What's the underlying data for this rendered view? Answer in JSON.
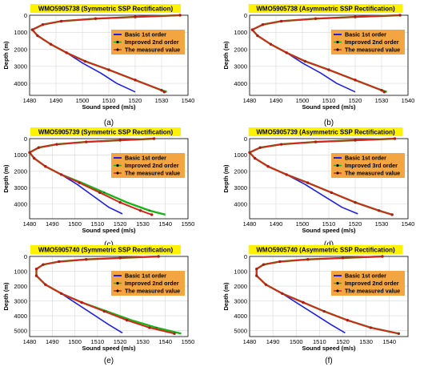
{
  "panels": [
    {
      "label": "(a)",
      "title": "WMO5905738 (Symmetric SSP Rectification)",
      "xlabel": "Sound speed (m/s)",
      "ylabel": "Depth (m)",
      "xticks": [
        1480,
        1490,
        1500,
        1510,
        1520,
        1530,
        1540
      ],
      "yticks": [
        0,
        1000,
        2000,
        3000,
        4000
      ],
      "xlim": [
        1480,
        1540
      ],
      "ylim": [
        0,
        4700
      ],
      "legend": [
        "Basic 1st order",
        "Improved 2nd order",
        "The measured value"
      ],
      "legend_loc": "upper-right"
    },
    {
      "label": "(b)",
      "title": "WMO5905738 (Asymmetric SSP Rectification)",
      "xlabel": "Sound speed (m/s)",
      "ylabel": "Depth (m)",
      "xticks": [
        1480,
        1490,
        1500,
        1510,
        1520,
        1530,
        1540
      ],
      "yticks": [
        0,
        1000,
        2000,
        3000,
        4000
      ],
      "xlim": [
        1480,
        1540
      ],
      "ylim": [
        0,
        4700
      ],
      "legend": [
        "Basic 1st order",
        "Improved 2nd order",
        "The measured value"
      ],
      "legend_loc": "upper-right"
    },
    {
      "label": "(c)",
      "title": "WMO5905739 (Symmetric SSP Rectification)",
      "xlabel": "Sound speed (m/s)",
      "ylabel": "Depth (m)",
      "xticks": [
        1480,
        1490,
        1500,
        1510,
        1520,
        1530,
        1540,
        1550
      ],
      "yticks": [
        0,
        1000,
        2000,
        3000,
        4000
      ],
      "xlim": [
        1480,
        1550
      ],
      "ylim": [
        0,
        4900
      ],
      "legend": [
        "Basic 1st order",
        "Improved 2nd order",
        "The measured value"
      ],
      "legend_loc": "upper-right"
    },
    {
      "label": "(d)",
      "title": "WMO5905739 (Asymmetric SSP Rectification)",
      "xlabel": "Sound speed (m/s)",
      "ylabel": "Depth (m)",
      "xticks": [
        1480,
        1490,
        1500,
        1510,
        1520,
        1530,
        1540
      ],
      "yticks": [
        0,
        1000,
        2000,
        3000,
        4000
      ],
      "xlim": [
        1480,
        1540
      ],
      "ylim": [
        0,
        4900
      ],
      "legend": [
        "Basic 1st order",
        "Improved 3rd order",
        "The measured value"
      ],
      "legend_loc": "upper-right"
    },
    {
      "label": "(e)",
      "title": "WMO5905740 (Symmetric SSP Rectification)",
      "xlabel": "Sound speed (m/s)",
      "ylabel": "Depth (m)",
      "xticks": [
        1480,
        1490,
        1500,
        1510,
        1520,
        1530,
        1540,
        1550
      ],
      "yticks": [
        0,
        1000,
        2000,
        3000,
        4000,
        5000
      ],
      "xlim": [
        1480,
        1550
      ],
      "ylim": [
        0,
        5400
      ],
      "legend": [
        "Basic 1st order",
        "Improved 2nd order",
        "The measured value"
      ],
      "legend_loc": "upper-right"
    },
    {
      "label": "(f)",
      "title": "WMO5905740 (Asymmetric SSP Rectification)",
      "xlabel": "Sound speed (m/s)",
      "ylabel": "Depth (m)",
      "xticks": [
        1480,
        1490,
        1500,
        1510,
        1520,
        1530,
        1540
      ],
      "yticks": [
        0,
        1000,
        2000,
        3000,
        4000,
        5000
      ],
      "xlim": [
        1480,
        1548
      ],
      "ylim": [
        0,
        5400
      ],
      "legend": [
        "Basic 1st order",
        "Improved 2nd order",
        "The measured value"
      ],
      "legend_loc": "upper-right"
    }
  ],
  "colors": {
    "basic": "#1f1fe6",
    "improved": "#18b418",
    "measured": "#d7261b",
    "legend_bg": "#f2a541",
    "title_bg": "#fff200"
  },
  "chart_data": [
    {
      "type": "line",
      "series": [
        {
          "name": "Basic 1st order",
          "x": [
            1537,
            1520,
            1505,
            1492,
            1485,
            1481,
            1483,
            1488,
            1494,
            1500,
            1507,
            1513,
            1520
          ],
          "y": [
            0,
            100,
            200,
            350,
            550,
            850,
            1200,
            1700,
            2200,
            2800,
            3400,
            4000,
            4500
          ]
        },
        {
          "name": "Improved 2nd order",
          "x": [
            1537,
            1520,
            1505,
            1492,
            1485,
            1481,
            1483,
            1488,
            1494,
            1501,
            1510,
            1520,
            1530,
            1532
          ],
          "y": [
            0,
            100,
            200,
            350,
            550,
            850,
            1200,
            1700,
            2200,
            2700,
            3200,
            3800,
            4400,
            4500
          ]
        },
        {
          "name": "The measured value",
          "x": [
            1537,
            1520,
            1505,
            1492,
            1485,
            1481,
            1483,
            1488,
            1494,
            1501,
            1510,
            1520,
            1530,
            1531
          ],
          "y": [
            0,
            100,
            200,
            350,
            550,
            850,
            1200,
            1700,
            2200,
            2700,
            3200,
            3800,
            4400,
            4500
          ]
        }
      ]
    },
    {
      "type": "line",
      "series": [
        {
          "name": "Basic 1st order",
          "x": [
            1537,
            1520,
            1505,
            1492,
            1485,
            1481,
            1483,
            1488,
            1494,
            1500,
            1507,
            1513,
            1520
          ],
          "y": [
            0,
            100,
            200,
            350,
            550,
            850,
            1200,
            1700,
            2200,
            2800,
            3400,
            4000,
            4500
          ]
        },
        {
          "name": "Improved 2nd order",
          "x": [
            1537,
            1520,
            1505,
            1492,
            1485,
            1481,
            1483,
            1488,
            1494,
            1501,
            1510,
            1520,
            1530,
            1532
          ],
          "y": [
            0,
            100,
            200,
            350,
            550,
            850,
            1200,
            1700,
            2200,
            2700,
            3200,
            3800,
            4400,
            4500
          ]
        },
        {
          "name": "The measured value",
          "x": [
            1537,
            1520,
            1505,
            1492,
            1485,
            1481,
            1483,
            1488,
            1494,
            1501,
            1510,
            1520,
            1530,
            1531
          ],
          "y": [
            0,
            100,
            200,
            350,
            550,
            850,
            1200,
            1700,
            2200,
            2700,
            3200,
            3800,
            4400,
            4500
          ]
        }
      ]
    },
    {
      "type": "line",
      "series": [
        {
          "name": "Basic 1st order",
          "x": [
            1535,
            1520,
            1505,
            1492,
            1484,
            1480,
            1482,
            1487,
            1494,
            1501,
            1508,
            1515,
            1521
          ],
          "y": [
            0,
            100,
            200,
            350,
            550,
            850,
            1200,
            1700,
            2200,
            2800,
            3500,
            4200,
            4600
          ]
        },
        {
          "name": "Improved 2nd order",
          "x": [
            1535,
            1520,
            1505,
            1492,
            1484,
            1480,
            1482,
            1487,
            1494,
            1503,
            1513,
            1523,
            1533,
            1540
          ],
          "y": [
            0,
            100,
            200,
            350,
            550,
            850,
            1200,
            1700,
            2200,
            2700,
            3300,
            3900,
            4400,
            4650
          ]
        },
        {
          "name": "The measured value",
          "x": [
            1535,
            1520,
            1505,
            1492,
            1484,
            1480,
            1482,
            1487,
            1494,
            1502,
            1511,
            1520,
            1529,
            1534
          ],
          "y": [
            0,
            100,
            200,
            350,
            550,
            850,
            1200,
            1700,
            2200,
            2700,
            3300,
            3900,
            4400,
            4650
          ]
        }
      ]
    },
    {
      "type": "line",
      "series": [
        {
          "name": "Basic 1st order",
          "x": [
            1535,
            1520,
            1505,
            1492,
            1484,
            1480,
            1482,
            1487,
            1494,
            1501,
            1508,
            1515,
            1521
          ],
          "y": [
            0,
            100,
            200,
            350,
            550,
            850,
            1200,
            1700,
            2200,
            2800,
            3500,
            4200,
            4600
          ]
        },
        {
          "name": "Improved 3rd order",
          "x": [
            1535,
            1520,
            1505,
            1492,
            1484,
            1480,
            1482,
            1487,
            1494,
            1502,
            1511,
            1520,
            1529,
            1534
          ],
          "y": [
            0,
            100,
            200,
            350,
            550,
            850,
            1200,
            1700,
            2200,
            2700,
            3300,
            3900,
            4400,
            4650
          ]
        },
        {
          "name": "The measured value",
          "x": [
            1535,
            1520,
            1505,
            1492,
            1484,
            1480,
            1482,
            1487,
            1494,
            1502,
            1511,
            1520,
            1529,
            1534
          ],
          "y": [
            0,
            100,
            200,
            350,
            550,
            850,
            1200,
            1700,
            2200,
            2700,
            3300,
            3900,
            4400,
            4650
          ]
        }
      ]
    },
    {
      "type": "line",
      "series": [
        {
          "name": "Basic 1st order",
          "x": [
            1537,
            1520,
            1505,
            1493,
            1486,
            1483,
            1483,
            1487,
            1494,
            1501,
            1508,
            1515,
            1521
          ],
          "y": [
            0,
            100,
            200,
            350,
            550,
            850,
            1300,
            1900,
            2500,
            3200,
            3900,
            4600,
            5150
          ]
        },
        {
          "name": "Improved 2nd order",
          "x": [
            1537,
            1520,
            1505,
            1493,
            1486,
            1483,
            1483,
            1487,
            1494,
            1503,
            1514,
            1525,
            1536,
            1547
          ],
          "y": [
            0,
            100,
            200,
            350,
            550,
            850,
            1300,
            1900,
            2500,
            3100,
            3700,
            4300,
            4800,
            5200
          ]
        },
        {
          "name": "The measured value",
          "x": [
            1537,
            1520,
            1505,
            1493,
            1486,
            1483,
            1483,
            1487,
            1494,
            1503,
            1513,
            1523,
            1533,
            1544
          ],
          "y": [
            0,
            100,
            200,
            350,
            550,
            850,
            1300,
            1900,
            2500,
            3100,
            3700,
            4300,
            4800,
            5200
          ]
        }
      ]
    },
    {
      "type": "line",
      "series": [
        {
          "name": "Basic 1st order",
          "x": [
            1537,
            1520,
            1505,
            1493,
            1486,
            1483,
            1483,
            1487,
            1494,
            1501,
            1508,
            1515,
            1521
          ],
          "y": [
            0,
            100,
            200,
            350,
            550,
            850,
            1300,
            1900,
            2500,
            3200,
            3900,
            4600,
            5150
          ]
        },
        {
          "name": "Improved 2nd order",
          "x": [
            1537,
            1520,
            1505,
            1493,
            1486,
            1483,
            1483,
            1487,
            1494,
            1503,
            1512,
            1522,
            1532,
            1544
          ],
          "y": [
            0,
            100,
            200,
            350,
            550,
            850,
            1300,
            1900,
            2500,
            3100,
            3700,
            4300,
            4800,
            5200
          ]
        },
        {
          "name": "The measured value",
          "x": [
            1537,
            1520,
            1505,
            1493,
            1486,
            1483,
            1483,
            1487,
            1494,
            1503,
            1512,
            1522,
            1532,
            1544
          ],
          "y": [
            0,
            100,
            200,
            350,
            550,
            850,
            1300,
            1900,
            2500,
            3100,
            3700,
            4300,
            4800,
            5200
          ]
        }
      ]
    }
  ]
}
